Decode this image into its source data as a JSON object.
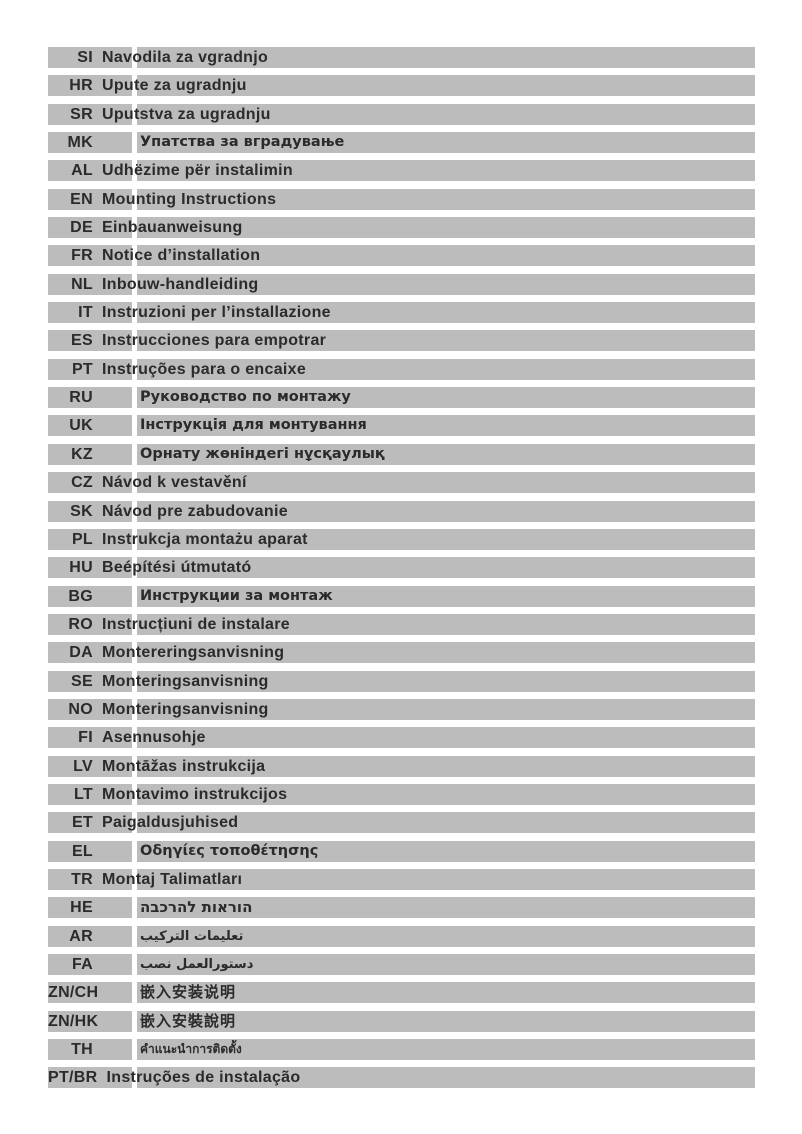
{
  "page": {
    "background": "#ffffff",
    "bar_color": "#bcbcbc",
    "divider_color": "#ffffff",
    "text_color": "#2b2b2b"
  },
  "rows": [
    {
      "code": "SI",
      "label": "Navodila za vgradnjo",
      "script": "latin"
    },
    {
      "code": "HR",
      "label": "Upute za ugradnju",
      "script": "latin"
    },
    {
      "code": "SR",
      "label": "Uputstva za ugradnju",
      "script": "latin"
    },
    {
      "code": "MK",
      "label": "Упатства за вградување",
      "script": "cyrillic"
    },
    {
      "code": "AL",
      "label": "Udhëzime për instalimin",
      "script": "latin"
    },
    {
      "code": "EN",
      "label": "Mounting Instructions",
      "script": "latin"
    },
    {
      "code": "DE",
      "label": "Einbauanweisung",
      "script": "latin"
    },
    {
      "code": "FR",
      "label": "Notice d’installation",
      "script": "latin"
    },
    {
      "code": "NL",
      "label": "Inbouw-handleiding",
      "script": "latin"
    },
    {
      "code": "IT",
      "label": "Instruzioni per l’installazione",
      "script": "latin"
    },
    {
      "code": "ES",
      "label": "Instrucciones para empotrar",
      "script": "latin"
    },
    {
      "code": "PT",
      "label": "Instruções para o encaixe",
      "script": "latin"
    },
    {
      "code": "RU",
      "label": "Руководство по монтажу",
      "script": "cyrillic"
    },
    {
      "code": "UK",
      "label": "Інструкція для монтування",
      "script": "cyrillic"
    },
    {
      "code": "KZ",
      "label": "Орнату жөніндегі нұсқаулық",
      "script": "cyrillic"
    },
    {
      "code": "CZ",
      "label": "Návod k vestavění",
      "script": "latin"
    },
    {
      "code": "SK",
      "label": "Návod pre zabudovanie",
      "script": "latin"
    },
    {
      "code": "PL",
      "label": "Instrukcja montażu aparat",
      "script": "latin"
    },
    {
      "code": "HU",
      "label": "Beépítési útmutató",
      "script": "latin"
    },
    {
      "code": "BG",
      "label": "Инструкции за монтаж",
      "script": "cyrillic"
    },
    {
      "code": "RO",
      "label": "Instrucțiuni de instalare",
      "script": "latin"
    },
    {
      "code": "DA",
      "label": "Montereringsanvisning",
      "script": "latin"
    },
    {
      "code": "SE",
      "label": "Monteringsanvisning",
      "script": "latin"
    },
    {
      "code": "NO",
      "label": "Monteringsanvisning",
      "script": "latin"
    },
    {
      "code": "FI",
      "label": "Asennusohje",
      "script": "latin"
    },
    {
      "code": "LV",
      "label": "Montāžas instrukcija",
      "script": "latin"
    },
    {
      "code": "LT",
      "label": "Montavimo instrukcijos",
      "script": "latin"
    },
    {
      "code": "ET",
      "label": "Paigaldusjuhised",
      "script": "latin"
    },
    {
      "code": "EL",
      "label": "Οδηγίες τοποθέτησης",
      "script": "greek"
    },
    {
      "code": "TR",
      "label": "Montaj Talimatları",
      "script": "latin"
    },
    {
      "code": "HE",
      "label": "הוראות להרכבה",
      "script": "hebrew"
    },
    {
      "code": "AR",
      "label": "تعليمات التركيب",
      "script": "arabic"
    },
    {
      "code": "FA",
      "label": "دستورالعمل نصب",
      "script": "arabic"
    },
    {
      "code": "ZN/CH",
      "label": "嵌入安装说明",
      "script": "cjk"
    },
    {
      "code": "ZN/HK",
      "label": "嵌入安裝說明",
      "script": "cjk"
    },
    {
      "code": "TH",
      "label": "คำแนะนำการติดตั้ง",
      "script": "thai"
    },
    {
      "code": "PT/BR",
      "label": "Instruções de instalação",
      "script": "latin"
    }
  ]
}
